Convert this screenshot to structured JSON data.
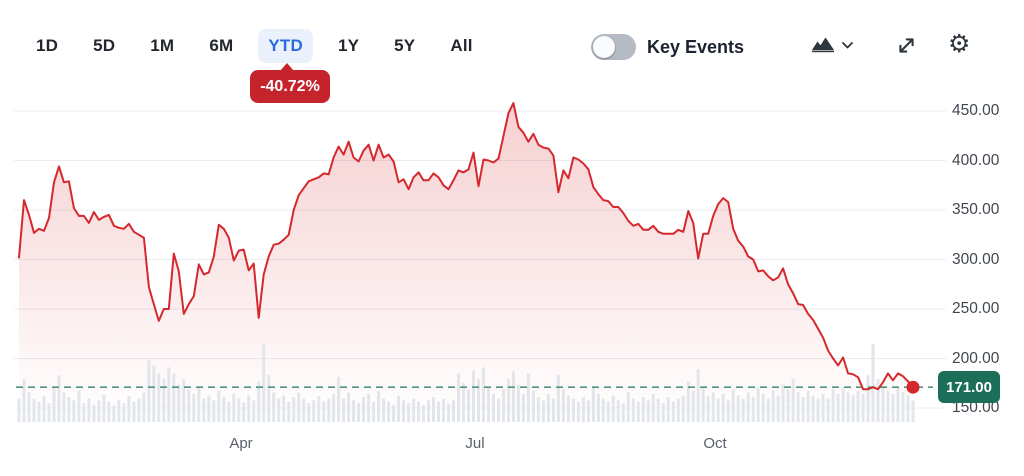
{
  "header": {
    "ranges": [
      {
        "label": "1D"
      },
      {
        "label": "5D"
      },
      {
        "label": "1M"
      },
      {
        "label": "6M"
      },
      {
        "label": "YTD"
      },
      {
        "label": "1Y"
      },
      {
        "label": "5Y"
      },
      {
        "label": "All"
      }
    ],
    "active_range": "YTD",
    "change_badge": "-40.72%",
    "key_events_label": "Key Events",
    "key_events_enabled": false,
    "icons": {
      "chart_type": "area-chart",
      "chart_type_dropdown": "chevron-down",
      "fullscreen": "expand-arrows",
      "settings": "gear"
    }
  },
  "colors": {
    "accent_blue": "#2b6be0",
    "accent_blue_bg": "#eaf1fc",
    "negative_red": "#c5242c",
    "line_red": "#d5282d",
    "positive_green": "#1b6e58",
    "dash_green": "#4f947e",
    "volume_gray": "#e2e6eb",
    "grid_gray": "#eaecf0",
    "text_dark": "#23262d",
    "axis_text": "#40464f",
    "muted_text": "#5a606b",
    "toggle_track": "#b5bbc5"
  },
  "chart_data": {
    "type": "line",
    "subtype": "area-with-volume",
    "period": "YTD",
    "change_pct": -40.72,
    "grid": true,
    "legend": false,
    "ylim": [
      150,
      450
    ],
    "y_ticks": [
      {
        "value": 450,
        "label": "450.00"
      },
      {
        "value": 400,
        "label": "400.00"
      },
      {
        "value": 350,
        "label": "350.00"
      },
      {
        "value": 300,
        "label": "300.00"
      },
      {
        "value": 250,
        "label": "250.00"
      },
      {
        "value": 200,
        "label": "200.00"
      },
      {
        "value": 150,
        "label": "150.00"
      }
    ],
    "x_ticks": [
      {
        "label": "Apr",
        "px": 241
      },
      {
        "label": "Jul",
        "px": 475
      },
      {
        "label": "Oct",
        "px": 715
      }
    ],
    "current_price": {
      "value": 171,
      "label": "171.00"
    },
    "prices": [
      302,
      360,
      345,
      327,
      331,
      329,
      342,
      378,
      394,
      378,
      379,
      352,
      344,
      344,
      337,
      348,
      340,
      343,
      345,
      334,
      332,
      331,
      336,
      328,
      325,
      322,
      272,
      255,
      238,
      250,
      250,
      306,
      288,
      245,
      255,
      263,
      295,
      285,
      287,
      303,
      335,
      331,
      322,
      299,
      309,
      310,
      289,
      296,
      241,
      285,
      303,
      315,
      316,
      320,
      325,
      350,
      365,
      372,
      379,
      381,
      383,
      387,
      386,
      403,
      414,
      406,
      419,
      403,
      399,
      410,
      416,
      400,
      416,
      403,
      406,
      399,
      378,
      381,
      371,
      383,
      388,
      380,
      380,
      387,
      383,
      375,
      371,
      380,
      390,
      388,
      391,
      408,
      374,
      401,
      400,
      398,
      402,
      425,
      448,
      458,
      434,
      428,
      419,
      427,
      416,
      413,
      412,
      405,
      368,
      390,
      382,
      403,
      401,
      397,
      391,
      373,
      366,
      360,
      359,
      353,
      353,
      347,
      339,
      334,
      336,
      330,
      330,
      334,
      328,
      326,
      326,
      326,
      330,
      328,
      349,
      337,
      301,
      326,
      326,
      344,
      356,
      362,
      358,
      331,
      319,
      313,
      303,
      300,
      288,
      289,
      283,
      279,
      282,
      291,
      275,
      266,
      255,
      254,
      245,
      239,
      230,
      221,
      208,
      200,
      193,
      201,
      185,
      184,
      181,
      169,
      169,
      171,
      169,
      176,
      185,
      178,
      185,
      182,
      177,
      171
    ],
    "volume_rel": [
      0.3,
      0.55,
      0.38,
      0.3,
      0.26,
      0.33,
      0.24,
      0.45,
      0.6,
      0.38,
      0.32,
      0.28,
      0.4,
      0.24,
      0.3,
      0.22,
      0.28,
      0.35,
      0.26,
      0.21,
      0.28,
      0.24,
      0.33,
      0.26,
      0.3,
      0.38,
      0.8,
      0.72,
      0.62,
      0.55,
      0.7,
      0.62,
      0.48,
      0.55,
      0.42,
      0.36,
      0.44,
      0.3,
      0.34,
      0.28,
      0.4,
      0.32,
      0.26,
      0.36,
      0.3,
      0.25,
      0.34,
      0.28,
      0.52,
      1.0,
      0.6,
      0.38,
      0.3,
      0.34,
      0.26,
      0.32,
      0.38,
      0.3,
      0.24,
      0.28,
      0.33,
      0.26,
      0.3,
      0.36,
      0.58,
      0.3,
      0.38,
      0.28,
      0.24,
      0.32,
      0.36,
      0.26,
      0.4,
      0.3,
      0.26,
      0.22,
      0.34,
      0.28,
      0.24,
      0.3,
      0.26,
      0.22,
      0.28,
      0.32,
      0.26,
      0.3,
      0.24,
      0.28,
      0.62,
      0.5,
      0.42,
      0.66,
      0.55,
      0.7,
      0.45,
      0.36,
      0.3,
      0.42,
      0.55,
      0.65,
      0.48,
      0.36,
      0.62,
      0.4,
      0.32,
      0.28,
      0.36,
      0.3,
      0.6,
      0.42,
      0.34,
      0.3,
      0.26,
      0.32,
      0.28,
      0.44,
      0.36,
      0.3,
      0.26,
      0.34,
      0.28,
      0.24,
      0.38,
      0.3,
      0.26,
      0.32,
      0.28,
      0.36,
      0.3,
      0.24,
      0.32,
      0.26,
      0.3,
      0.34,
      0.52,
      0.4,
      0.68,
      0.44,
      0.34,
      0.38,
      0.3,
      0.36,
      0.28,
      0.42,
      0.34,
      0.3,
      0.38,
      0.32,
      0.44,
      0.36,
      0.3,
      0.4,
      0.34,
      0.48,
      0.42,
      0.55,
      0.38,
      0.32,
      0.4,
      0.34,
      0.3,
      0.36,
      0.3,
      0.42,
      0.36,
      0.44,
      0.38,
      0.34,
      0.4,
      0.36,
      0.6,
      1.0,
      0.55,
      0.46,
      0.4,
      0.36,
      0.44,
      0.38,
      0.34,
      0.28
    ]
  }
}
